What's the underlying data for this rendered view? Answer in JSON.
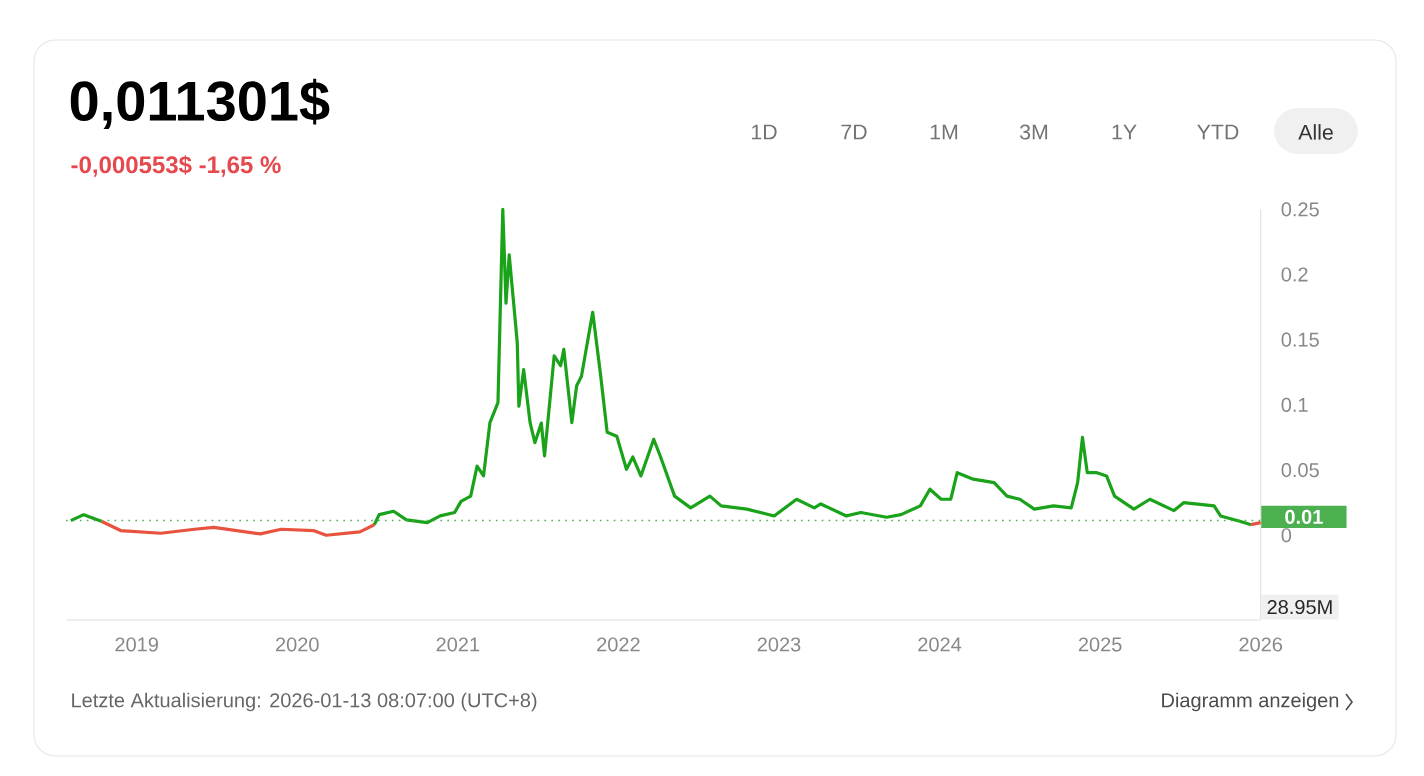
{
  "chart_data": {
    "type": "line",
    "title": "0,011301$",
    "subtitle": "-0,000553$  -1,65 %",
    "annotations": [
      "1D",
      "7D",
      "1M",
      "3M",
      "1Y",
      "YTD",
      "Alle",
      "28.95M",
      "Letzte Aktualisierung:  2026-01-13 08:07:00 (UTC+8)",
      "Diagramm anzeigen"
    ],
    "xlim": [
      2018.56,
      2026.0
    ],
    "ylim": [
      -0.065,
      0.25
    ],
    "xticks": [
      2019,
      2020,
      2021,
      2022,
      2023,
      2024,
      2025,
      2026
    ],
    "yticks": [
      0,
      0.05,
      0.1,
      0.15,
      0.2,
      0.25
    ],
    "ref_lines": [
      {
        "axis": "y",
        "value": 0.011301,
        "label": "0.01",
        "color": "#4caf50",
        "line_style": "dotted"
      }
    ],
    "series": [
      {
        "color": "#1aa31a",
        "x": [
          2020.48,
          2020.51,
          2020.6,
          2020.68,
          2020.81,
          2020.89,
          2020.98,
          2021.02,
          2021.08,
          2021.12,
          2021.16,
          2021.2,
          2021.25,
          2021.28,
          2021.3,
          2021.32,
          2021.37,
          2021.38,
          2021.41,
          2021.45,
          2021.48,
          2021.52,
          2021.54,
          2021.6,
          2021.64,
          2021.66,
          2021.71,
          2021.74,
          2021.77,
          2021.84,
          2021.89,
          2021.93,
          2021.99,
          2022.05,
          2022.09,
          2022.14,
          2022.22,
          2022.26,
          2022.35,
          2022.45,
          2022.57,
          2022.64,
          2022.8,
          2022.97,
          2023.11,
          2023.22,
          2023.26,
          2023.42,
          2023.51,
          2023.67,
          2023.76,
          2023.88,
          2023.94,
          2024.01,
          2024.07,
          2024.11,
          2024.21,
          2024.34,
          2024.42,
          2024.5,
          2024.59,
          2024.71,
          2024.82,
          2024.86,
          2024.89,
          2024.92,
          2024.98,
          2025.04,
          2025.09,
          2025.21,
          2025.31,
          2025.46,
          2025.52,
          2025.71,
          2025.75,
          2025.87,
          2025.94
        ],
        "values": [
          0.008,
          0.0158,
          0.0184,
          0.0118,
          0.0097,
          0.0148,
          0.0174,
          0.026,
          0.03,
          0.053,
          0.0455,
          0.0864,
          0.1017,
          0.25,
          0.178,
          0.215,
          0.148,
          0.099,
          0.127,
          0.0864,
          0.071,
          0.086,
          0.0609,
          0.1376,
          0.13,
          0.1426,
          0.0864,
          0.1146,
          0.122,
          0.171,
          0.122,
          0.079,
          0.076,
          0.0506,
          0.06,
          0.0455,
          0.0736,
          0.061,
          0.03,
          0.021,
          0.03,
          0.0225,
          0.02,
          0.0148,
          0.0276,
          0.021,
          0.024,
          0.0148,
          0.0174,
          0.0138,
          0.0158,
          0.0225,
          0.0353,
          0.0276,
          0.0276,
          0.048,
          0.043,
          0.0403,
          0.03,
          0.0276,
          0.02,
          0.0225,
          0.021,
          0.0403,
          0.075,
          0.048,
          0.048,
          0.0455,
          0.03,
          0.02,
          0.0276,
          0.0189,
          0.025,
          0.0225,
          0.0148,
          0.0107,
          0.0081
        ]
      },
      {
        "color": "#e8533f",
        "x": [
          2018.78,
          2018.9,
          2019.15,
          2019.36,
          2019.48,
          2019.77,
          2019.9,
          2020.1,
          2020.18,
          2020.39,
          2020.48
        ],
        "values": [
          0.0107,
          0.0036,
          0.0015,
          0.0046,
          0.006,
          0.001,
          0.0046,
          0.0036,
          0.0,
          0.0026,
          0.008
        ]
      },
      {
        "color": "#1aa31a",
        "x": [
          2018.59,
          2018.67,
          2018.78
        ],
        "values": [
          0.0112,
          0.0158,
          0.0107
        ]
      },
      {
        "color": "#e8533f",
        "x": [
          2025.94,
          2026.0
        ],
        "values": [
          0.0081,
          0.0097
        ]
      }
    ]
  }
}
